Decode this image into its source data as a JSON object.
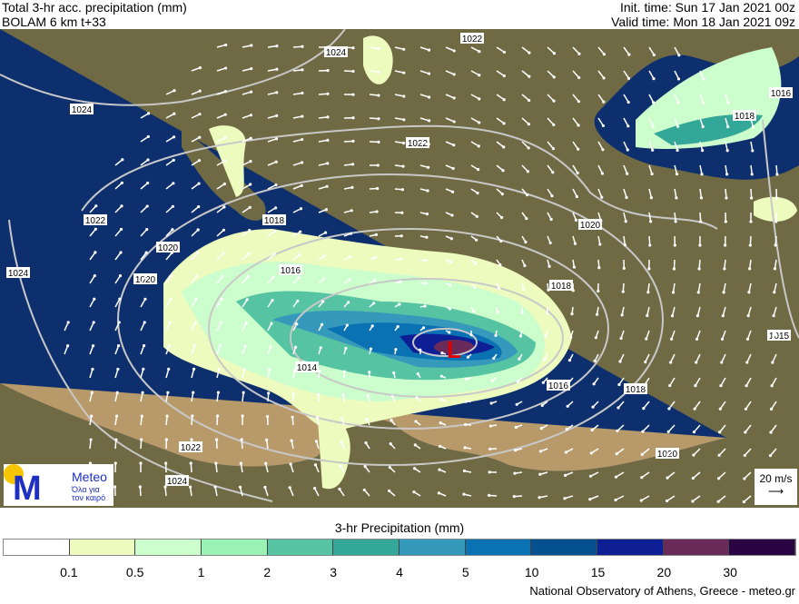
{
  "header": {
    "title": "Total 3-hr acc. precipitation (mm)",
    "model": "BOLAM 6 km t+33",
    "init_time": "Init. time: Sun 17 Jan 2021 00z",
    "valid_time": "Valid time: Mon 18 Jan 2021 09z"
  },
  "map": {
    "isobar_labels": [
      "1024",
      "1024",
      "1022",
      "1022",
      "1024",
      "1020",
      "1020",
      "1018",
      "1018",
      "1016",
      "1014",
      "1016",
      "1018",
      "1018",
      "1020",
      "1020",
      "1016",
      "1015",
      "1022",
      "1024",
      "1022"
    ],
    "low_marker": "L",
    "colors": {
      "sea": "#0e2f6e",
      "land": "#8a7a52",
      "isobar": "#c8c8c8",
      "arrow": "#ffffff",
      "low": "#e00000"
    }
  },
  "logo": {
    "brand": "Meteo",
    "tagline": "Όλα για τον καιρό",
    "icon": "meteo-logo"
  },
  "wind_scale": {
    "label": "20 m/s",
    "icon": "arrow-right-icon"
  },
  "legend": {
    "title": "3-hr Precipitation (mm)",
    "ticks": [
      "0.1",
      "0.5",
      "1",
      "2",
      "3",
      "4",
      "5",
      "10",
      "15",
      "20",
      "30"
    ],
    "colors": [
      "#ffffff",
      "#eefbbf",
      "#ccfdcc",
      "#9af2b4",
      "#56c3a2",
      "#33a898",
      "#3599bb",
      "#0a71b3",
      "#05508f",
      "#0e1f95",
      "#6b2b5a",
      "#2b0444"
    ]
  },
  "credit": "National Observatory of Athens, Greece - meteo.gr"
}
